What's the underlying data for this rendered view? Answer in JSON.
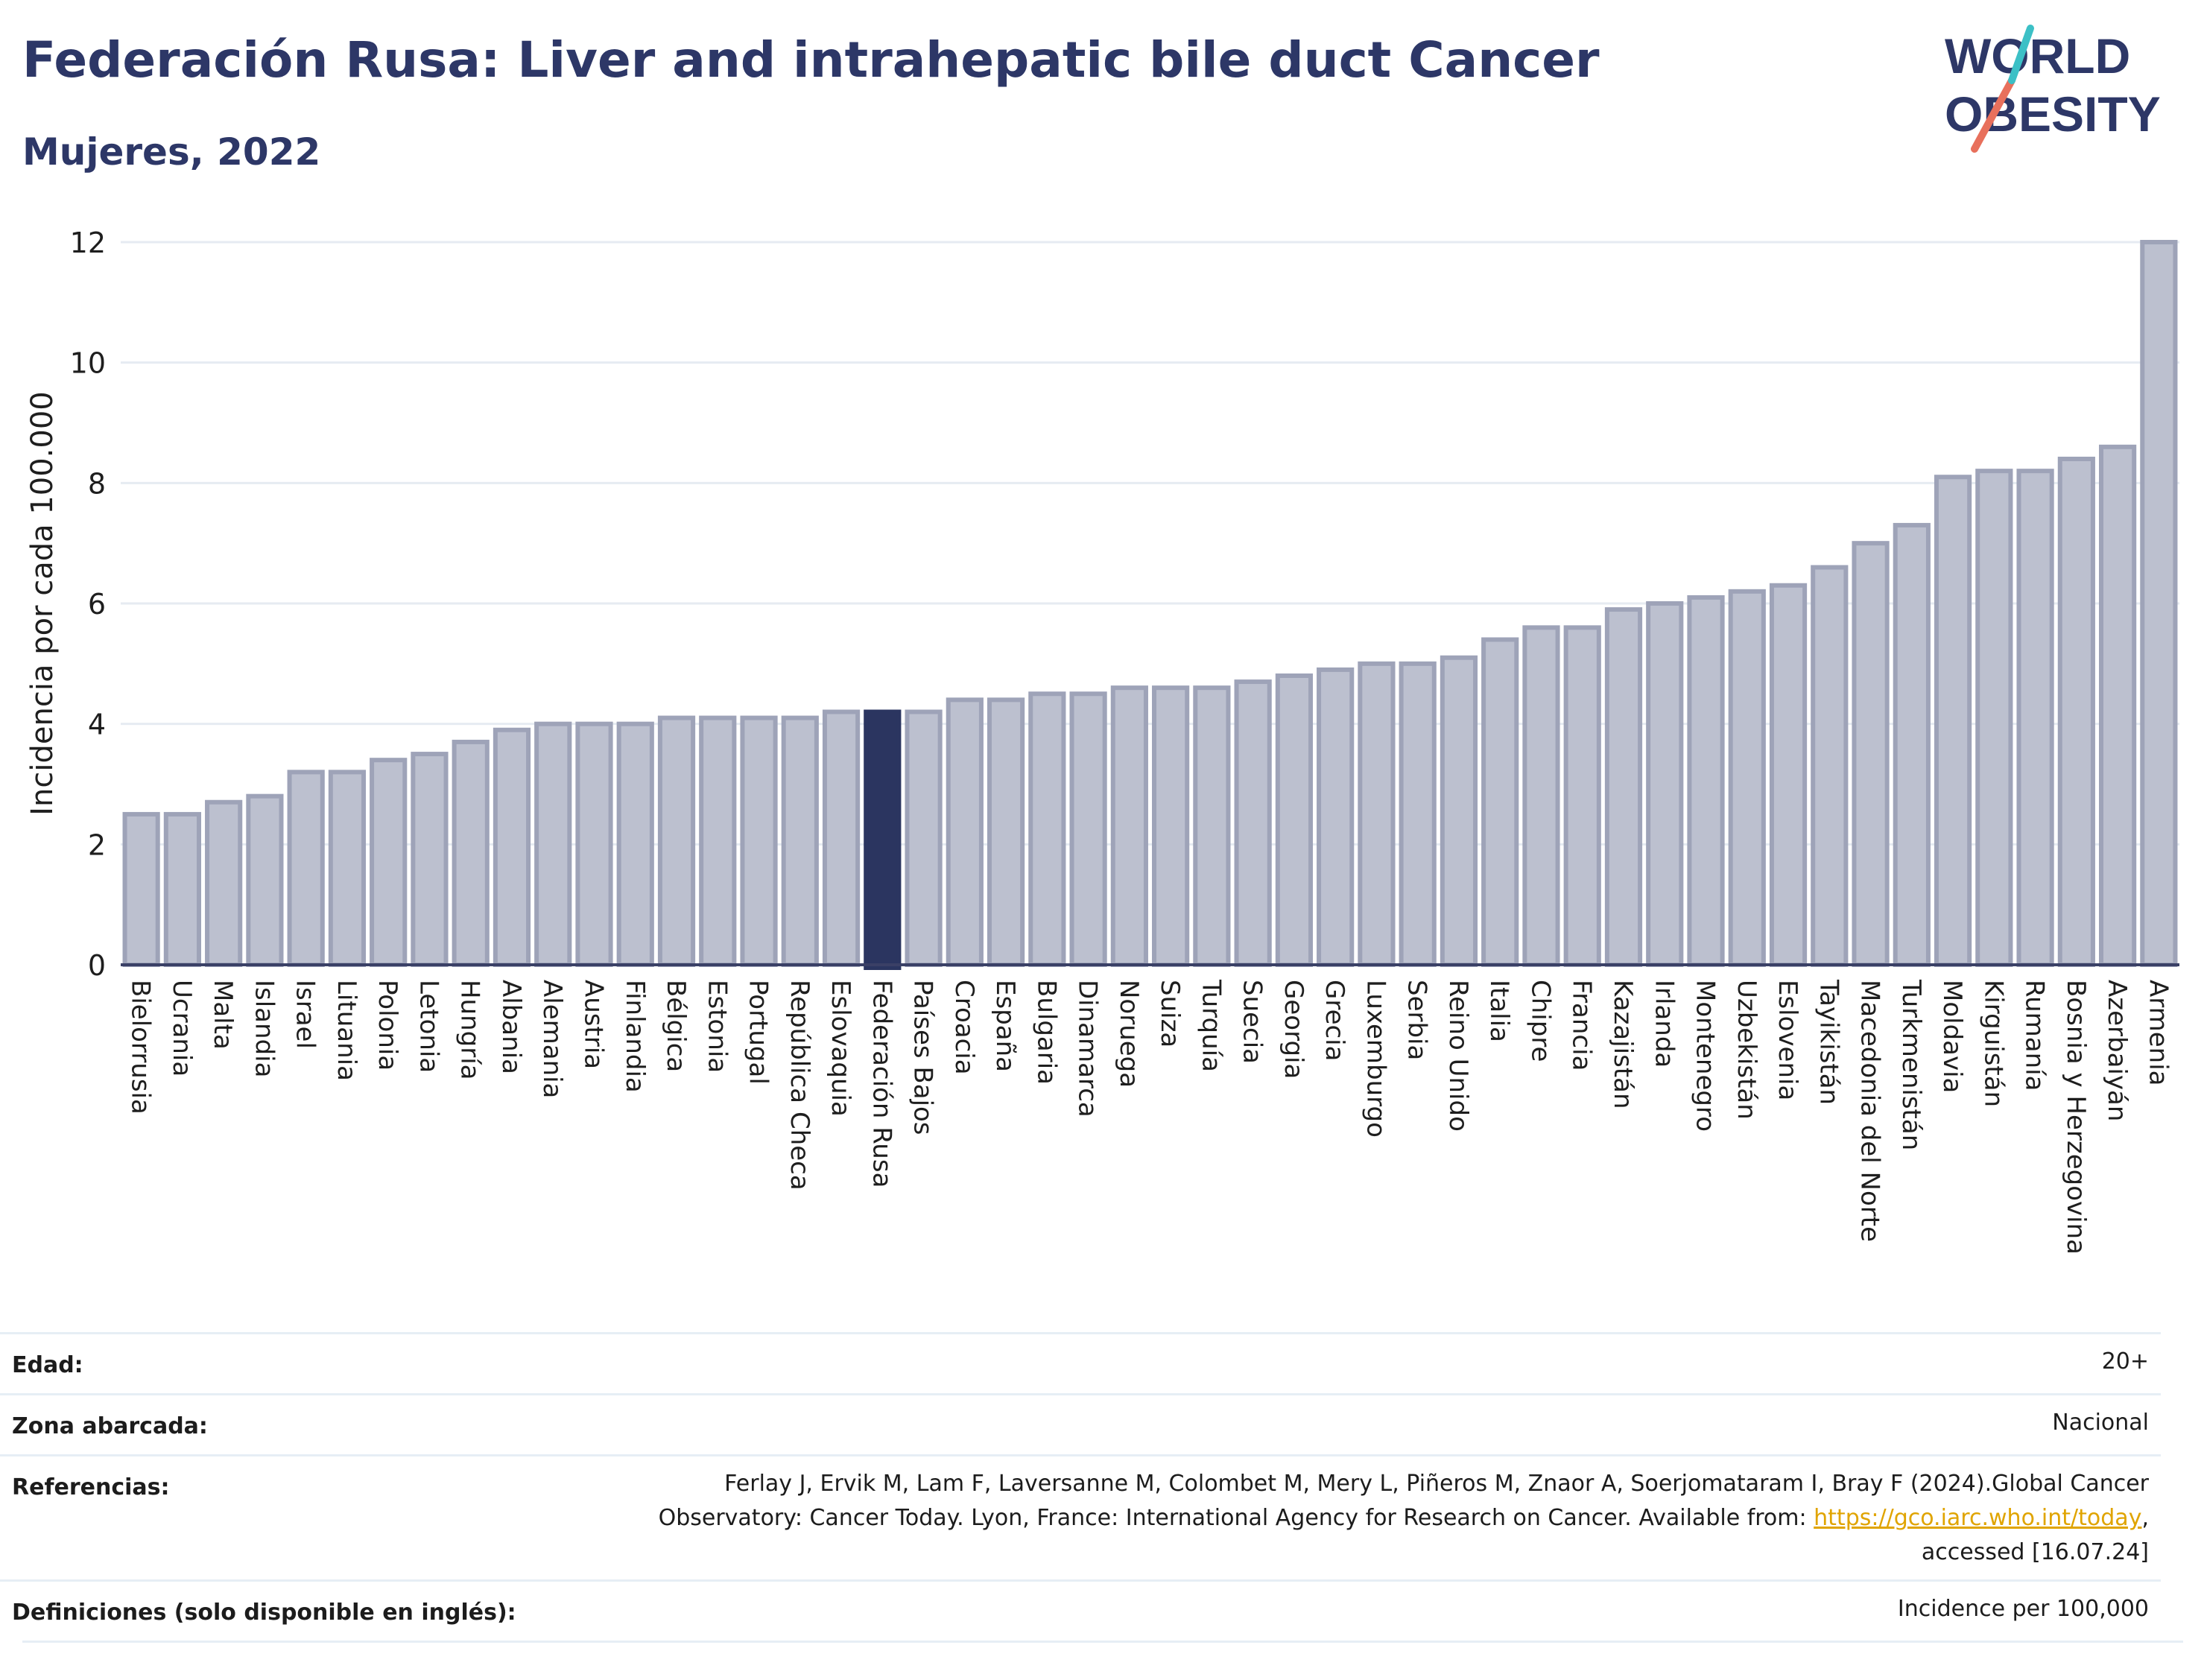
{
  "header": {
    "title": "Federación Rusa: Liver and intrahepatic bile duct Cancer",
    "subtitle": "Mujeres, 2022",
    "logo_line1": "WORLD",
    "logo_line2": "OBESITY"
  },
  "chart_data": {
    "type": "bar",
    "ylabel": "Incidencia por cada 100.000",
    "ylim": [
      0,
      12
    ],
    "yticks": [
      0,
      2,
      4,
      6,
      8,
      10,
      12
    ],
    "highlight": "Federación Rusa",
    "colors": {
      "bar": "#bcc0cf",
      "bar_border": "#9ea3b8",
      "highlight": "#2b3560",
      "grid": "#e6ebf2",
      "axis": "#3a4066"
    },
    "categories": [
      "Bielorrusia",
      "Ucrania",
      "Malta",
      "Islandia",
      "Israel",
      "Lituania",
      "Polonia",
      "Letonia",
      "Hungría",
      "Albania",
      "Alemania",
      "Austria",
      "Finlandia",
      "Bélgica",
      "Estonia",
      "Portugal",
      "República Checa",
      "Eslovaquia",
      "Federación Rusa",
      "Países Bajos",
      "Croacia",
      "España",
      "Bulgaria",
      "Dinamarca",
      "Noruega",
      "Suiza",
      "Turquía",
      "Suecia",
      "Georgia",
      "Grecia",
      "Luxemburgo",
      "Serbia",
      "Reino Unido",
      "Italia",
      "Chipre",
      "Francia",
      "Kazajistán",
      "Irlanda",
      "Montenegro",
      "Uzbekistán",
      "Eslovenia",
      "Tayikistán",
      "Macedonia del Norte",
      "Turkmenistán",
      "Moldavia",
      "Kirguistán",
      "Rumanía",
      "Bosnia y Herzegovina",
      "Azerbaiyán",
      "Armenia"
    ],
    "values": [
      2.5,
      2.5,
      2.7,
      2.8,
      3.2,
      3.2,
      3.4,
      3.5,
      3.7,
      3.9,
      4.0,
      4.0,
      4.0,
      4.1,
      4.1,
      4.1,
      4.1,
      4.2,
      4.2,
      4.2,
      4.4,
      4.4,
      4.5,
      4.5,
      4.6,
      4.6,
      4.6,
      4.7,
      4.8,
      4.9,
      5.0,
      5.0,
      5.1,
      5.4,
      5.6,
      5.6,
      5.9,
      6.0,
      6.1,
      6.2,
      6.3,
      6.6,
      7.0,
      7.3,
      8.1,
      8.2,
      8.2,
      8.4,
      8.6,
      12.0
    ]
  },
  "meta": {
    "age_label": "Edad:",
    "age_value": "20+",
    "area_label": "Zona abarcada:",
    "area_value": "Nacional",
    "ref_label": "Referencias:",
    "ref_line1": "Ferlay J, Ervik M, Lam F, Laversanne M, Colombet M, Mery L, Piñeros M, Znaor A, Soerjomataram I, Bray F (2024).Global Cancer",
    "ref_line2": "Observatory: Cancer Today. Lyon, France: International Agency for Research on Cancer. Available from: ",
    "ref_link": "https://gco.iarc.who.int/today",
    "ref_line2_end": ",",
    "ref_line3": "accessed [16.07.24]",
    "def_label": "Definiciones (solo disponible en inglés):",
    "def_value": "Incidence per 100,000"
  }
}
